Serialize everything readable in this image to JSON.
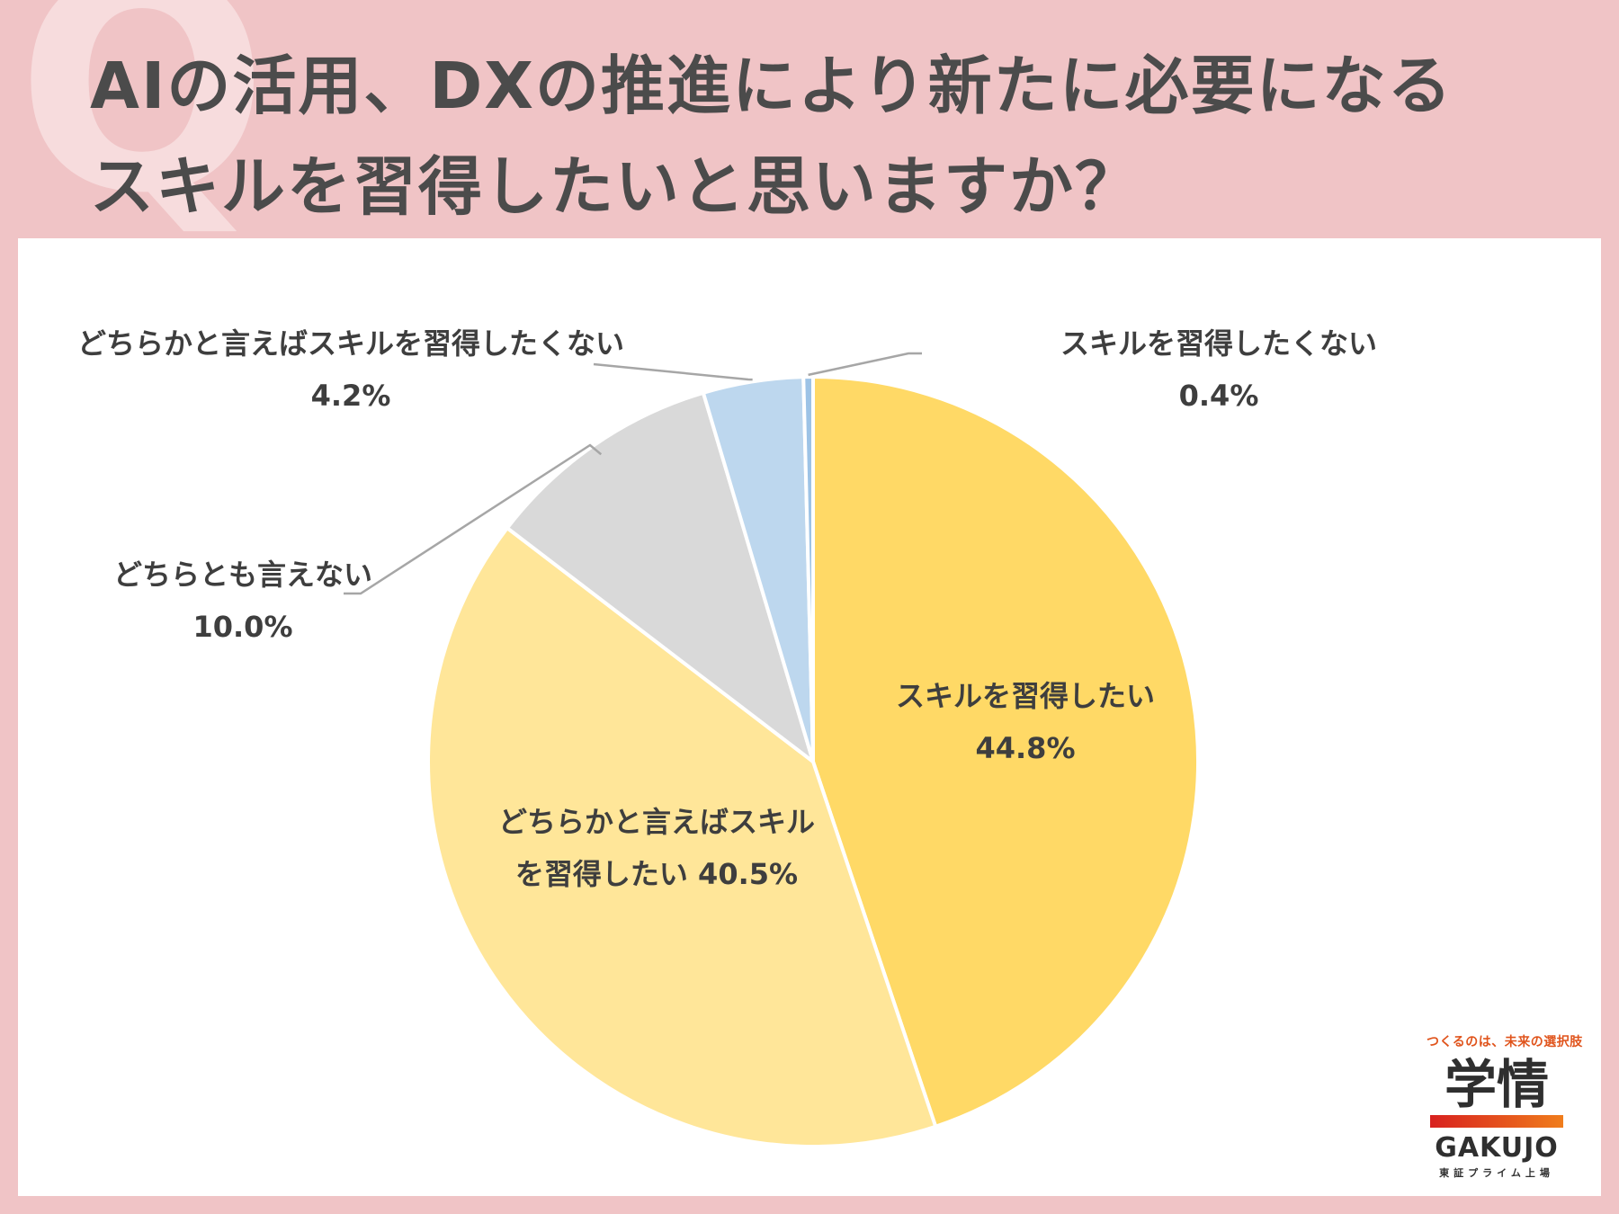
{
  "question": {
    "mark": "Q",
    "line1": "AIの活用、DXの推進により新たに必要になる",
    "line2": "スキルを習得したいと思いますか？"
  },
  "chart_data": {
    "type": "pie",
    "title": "AIの活用、DXの推進により新たに必要になるスキルを習得したいと思いますか？",
    "start_angle_deg": 0,
    "direction": "clockwise",
    "slices": [
      {
        "label": "スキルを習得したい",
        "value": 44.8,
        "value_label": "44.8%",
        "color": "#ffd966"
      },
      {
        "label": "どちらかと言えばスキルを習得したい",
        "value": 40.5,
        "value_label": "40.5%",
        "color": "#ffe699"
      },
      {
        "label": "どちらとも言えない",
        "value": 10.0,
        "value_label": "10.0%",
        "color": "#d9d9d9"
      },
      {
        "label": "どちらかと言えばスキルを習得したくない",
        "value": 4.2,
        "value_label": "4.2%",
        "color": "#bdd7ee"
      },
      {
        "label": "スキルを習得したくない",
        "value": 0.4,
        "value_label": "0.4%",
        "color": "#9dc3e6"
      }
    ],
    "labels": {
      "s0": {
        "line1": "スキルを習得したい",
        "line2": "44.8%"
      },
      "s1": {
        "line1": "どちらかと言えばスキル",
        "line2": "を習得したい 40.5%"
      },
      "s2": {
        "line1": "どちらとも言えない",
        "line2": "10.0%"
      },
      "s3": {
        "line1": "どちらかと言えばスキルを習得したくない",
        "line2": "4.2%"
      },
      "s4": {
        "line1": "スキルを習得したくない",
        "line2": "0.4%"
      }
    },
    "leader_line_color": "#a6a6a6"
  },
  "logo": {
    "tagline": "つくるのは、未来の選択肢",
    "kanji": "学情",
    "roman": "GAKUJO",
    "listed": "東証プライム上場",
    "accent": "#e0541c"
  }
}
